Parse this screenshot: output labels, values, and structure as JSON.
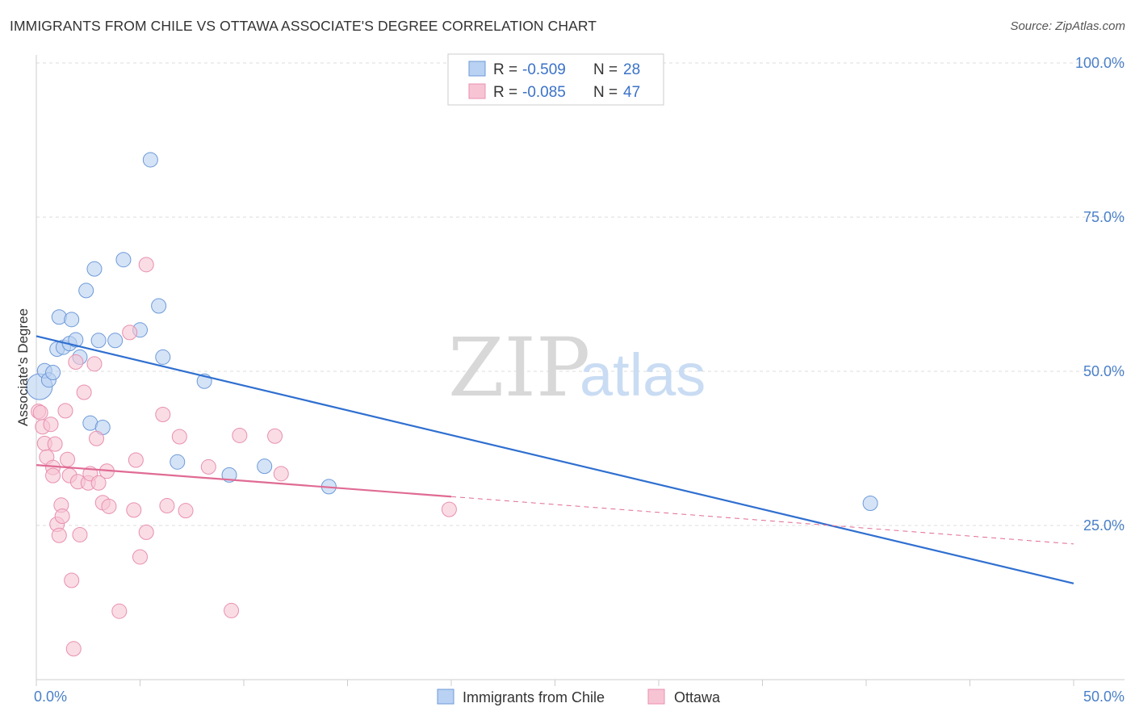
{
  "title": "IMMIGRANTS FROM CHILE VS OTTAWA ASSOCIATE'S DEGREE CORRELATION CHART",
  "source": "Source: ZipAtlas.com",
  "watermark": {
    "zip": "ZIP",
    "atlas": "atlas"
  },
  "colors": {
    "blue_fill": "#b9d1f2",
    "blue_stroke": "#6d9ad8",
    "blue_line": "#2f6fd0",
    "pink_fill": "#f7c4d4",
    "pink_stroke": "#e890ae",
    "pink_line": "#e06b94",
    "grid": "#dddddd",
    "tick_label": "#4a7fc8"
  },
  "legend": {
    "items": [
      {
        "r_label": "R = ",
        "r_value": "-0.509",
        "n_label": "N = ",
        "n_value": "28"
      },
      {
        "r_label": "R = ",
        "r_value": "-0.085",
        "n_label": "N = ",
        "n_value": "47"
      }
    ]
  },
  "chart_data": {
    "type": "scatter",
    "xlabel": "",
    "ylabel": "Associate's Degree",
    "xlim": [
      0,
      50
    ],
    "ylim": [
      0,
      100
    ],
    "x_tick_labels": [
      "0.0%",
      "50.0%"
    ],
    "y_ticks": [
      25,
      50,
      75,
      100
    ],
    "y_tick_labels": [
      "25.0%",
      "50.0%",
      "75.0%",
      "100.0%"
    ],
    "grid": true,
    "legend_position": "top-center",
    "series": [
      {
        "name": "Immigrants from Chile",
        "color": "blue",
        "points": [
          [
            0.15,
            47.5,
            16
          ],
          [
            0.4,
            50.1,
            9
          ],
          [
            0.6,
            48.6,
            9
          ],
          [
            0.8,
            49.8,
            9
          ],
          [
            1.0,
            53.6,
            9
          ],
          [
            1.1,
            58.8,
            9
          ],
          [
            1.3,
            53.9,
            9
          ],
          [
            1.6,
            54.5,
            9
          ],
          [
            1.7,
            58.4,
            9
          ],
          [
            1.9,
            55.1,
            9
          ],
          [
            2.1,
            52.3,
            9
          ],
          [
            2.4,
            63.1,
            9
          ],
          [
            2.6,
            41.6,
            9
          ],
          [
            2.8,
            66.6,
            9
          ],
          [
            3.0,
            55.0,
            9
          ],
          [
            3.2,
            40.9,
            9
          ],
          [
            3.8,
            55.0,
            9
          ],
          [
            4.2,
            68.1,
            9
          ],
          [
            5.0,
            56.7,
            9
          ],
          [
            5.5,
            84.3,
            9
          ],
          [
            5.9,
            60.6,
            9
          ],
          [
            6.1,
            52.3,
            9
          ],
          [
            6.8,
            35.3,
            9
          ],
          [
            8.1,
            48.4,
            9
          ],
          [
            9.3,
            33.2,
            9
          ],
          [
            11.0,
            34.6,
            9
          ],
          [
            14.1,
            31.3,
            9
          ],
          [
            40.2,
            28.6,
            9
          ]
        ]
      },
      {
        "name": "Ottawa",
        "color": "pink",
        "points": [
          [
            0.1,
            43.5,
            9
          ],
          [
            0.2,
            43.3,
            9
          ],
          [
            0.3,
            41.0,
            9
          ],
          [
            0.4,
            38.3,
            9
          ],
          [
            0.5,
            36.1,
            9
          ],
          [
            0.7,
            41.4,
            9
          ],
          [
            0.8,
            34.4,
            9
          ],
          [
            0.8,
            33.1,
            9
          ],
          [
            0.9,
            38.2,
            9
          ],
          [
            1.0,
            25.2,
            9
          ],
          [
            1.1,
            23.4,
            9
          ],
          [
            1.2,
            28.3,
            9
          ],
          [
            1.25,
            26.5,
            9
          ],
          [
            1.4,
            43.6,
            9
          ],
          [
            1.5,
            35.7,
            9
          ],
          [
            1.6,
            33.1,
            9
          ],
          [
            1.7,
            16.1,
            9
          ],
          [
            1.8,
            5.0,
            9
          ],
          [
            1.9,
            51.5,
            9
          ],
          [
            2.0,
            32.1,
            9
          ],
          [
            2.1,
            23.5,
            9
          ],
          [
            2.3,
            46.6,
            9
          ],
          [
            2.5,
            31.9,
            9
          ],
          [
            2.6,
            33.4,
            9
          ],
          [
            2.8,
            51.2,
            9
          ],
          [
            2.9,
            39.1,
            9
          ],
          [
            3.0,
            31.9,
            9
          ],
          [
            3.2,
            28.7,
            9
          ],
          [
            3.4,
            33.8,
            9
          ],
          [
            3.5,
            28.1,
            9
          ],
          [
            4.0,
            11.1,
            9
          ],
          [
            4.5,
            56.3,
            9
          ],
          [
            4.7,
            27.5,
            9
          ],
          [
            4.8,
            35.6,
            9
          ],
          [
            5.0,
            19.9,
            9
          ],
          [
            5.3,
            23.9,
            9
          ],
          [
            5.3,
            67.3,
            9
          ],
          [
            6.1,
            43.0,
            9
          ],
          [
            6.3,
            28.2,
            9
          ],
          [
            6.9,
            39.4,
            9
          ],
          [
            7.2,
            27.4,
            9
          ],
          [
            8.3,
            34.5,
            9
          ],
          [
            9.4,
            11.2,
            9
          ],
          [
            9.8,
            39.6,
            9
          ],
          [
            11.5,
            39.5,
            9
          ],
          [
            11.8,
            33.4,
            9
          ],
          [
            19.9,
            27.6,
            9
          ]
        ]
      }
    ],
    "trend_lines": [
      {
        "series": "Immigrants from Chile",
        "x": [
          0,
          50
        ],
        "y": [
          55.7,
          15.6
        ],
        "solid_to": 50
      },
      {
        "series": "Ottawa",
        "x": [
          0,
          50
        ],
        "y": [
          34.8,
          22.0
        ],
        "solid_to": 20
      }
    ]
  }
}
